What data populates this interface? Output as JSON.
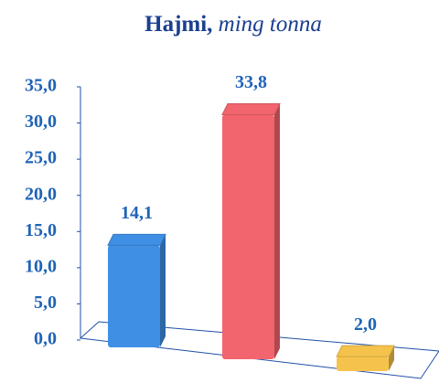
{
  "chart_data": {
    "type": "bar3d",
    "title": "Hajmi,",
    "subtitle": "ming tonna",
    "categories": [
      null,
      null,
      null
    ],
    "values": [
      14.1,
      33.8,
      2.0
    ],
    "value_labels": [
      "14,1",
      "33,8",
      "2,0"
    ],
    "colors": [
      "#3f8fe4",
      "#f2646e",
      "#f5c34c"
    ],
    "ylim": [
      0,
      35
    ],
    "yticks": [
      {
        "value": 0,
        "label": "0,0"
      },
      {
        "value": 5,
        "label": "5,0"
      },
      {
        "value": 10,
        "label": "10,0"
      },
      {
        "value": 15,
        "label": "15,0"
      },
      {
        "value": 20,
        "label": "20,0"
      },
      {
        "value": 25,
        "label": "25,0"
      },
      {
        "value": 30,
        "label": "30,0"
      },
      {
        "value": 35,
        "label": "35,0"
      }
    ]
  }
}
